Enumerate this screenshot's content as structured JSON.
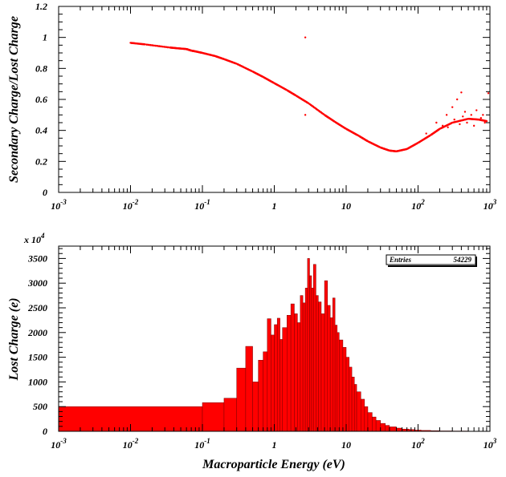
{
  "chart_data": [
    {
      "type": "scatter",
      "xscale": "log",
      "xlim": [
        0.001,
        1000
      ],
      "ylim": [
        0,
        1.2
      ],
      "ylabel": "Secondary Charge/Lost Charge",
      "xtick_labels": [
        "10^-3",
        "10^-2",
        "10^-1",
        "1",
        "10",
        "10^2",
        "10^3"
      ],
      "ytick_labels": [
        "0",
        "0.2",
        "0.4",
        "0.6",
        "0.8",
        "1",
        "1.2"
      ],
      "marker_color": "#ff0000",
      "points": [
        [
          0.01,
          0.965
        ],
        [
          0.016,
          0.955
        ],
        [
          0.035,
          0.935
        ],
        [
          0.045,
          0.93
        ],
        [
          0.06,
          0.925
        ],
        [
          0.07,
          0.915
        ],
        [
          0.08,
          0.91
        ],
        [
          0.1,
          0.9
        ],
        [
          0.15,
          0.88
        ],
        [
          0.2,
          0.86
        ],
        [
          0.3,
          0.83
        ],
        [
          0.5,
          0.78
        ],
        [
          0.7,
          0.745
        ],
        [
          1.0,
          0.705
        ],
        [
          1.5,
          0.66
        ],
        [
          2.0,
          0.625
        ],
        [
          3.0,
          0.575
        ],
        [
          5.0,
          0.5
        ],
        [
          7.0,
          0.455
        ],
        [
          10.0,
          0.41
        ],
        [
          15.0,
          0.365
        ],
        [
          20.0,
          0.33
        ],
        [
          30.0,
          0.29
        ],
        [
          40.0,
          0.27
        ],
        [
          50.0,
          0.265
        ],
        [
          70.0,
          0.28
        ],
        [
          100.0,
          0.32
        ],
        [
          150.0,
          0.37
        ],
        [
          200.0,
          0.41
        ],
        [
          300.0,
          0.45
        ],
        [
          500.0,
          0.475
        ],
        [
          700.0,
          0.47
        ],
        [
          900.0,
          0.46
        ],
        [
          2.7,
          1.0
        ],
        [
          2.7,
          0.5
        ],
        [
          250.0,
          0.5
        ],
        [
          300.0,
          0.55
        ],
        [
          350.0,
          0.6
        ],
        [
          400.0,
          0.645
        ],
        [
          450.0,
          0.52
        ],
        [
          550.0,
          0.5
        ],
        [
          650.0,
          0.53
        ],
        [
          750.0,
          0.48
        ],
        [
          850.0,
          0.45
        ],
        [
          950.0,
          0.64
        ],
        [
          180.0,
          0.45
        ],
        [
          220.0,
          0.43
        ],
        [
          260.0,
          0.42
        ],
        [
          320.0,
          0.47
        ],
        [
          380.0,
          0.44
        ],
        [
          420.0,
          0.49
        ],
        [
          480.0,
          0.45
        ],
        [
          600.0,
          0.43
        ],
        [
          800.0,
          0.5
        ],
        [
          130.0,
          0.38
        ]
      ]
    },
    {
      "type": "bar",
      "xscale": "log",
      "xlim": [
        0.001,
        1000
      ],
      "ylim": [
        0,
        3750
      ],
      "xlabel": "Macroparticle Energy (eV)",
      "ylabel": "Lost Charge (e)",
      "scale_note_base": "x 10",
      "scale_note_exp": "4",
      "stats_label": "Entries",
      "stats_value": "54229",
      "xtick_labels": [
        "10^-3",
        "10^-2",
        "10^-1",
        "1",
        "10",
        "10^2",
        "10^3"
      ],
      "ytick_labels": [
        "0",
        "500",
        "1000",
        "1500",
        "2000",
        "2500",
        "3000",
        "3500"
      ],
      "fill_color": "#ff0000",
      "bins": [
        [
          0.001,
          0.1,
          500
        ],
        [
          0.1,
          0.2,
          580
        ],
        [
          0.2,
          0.3,
          670
        ],
        [
          0.3,
          0.4,
          1280
        ],
        [
          0.4,
          0.5,
          1720
        ],
        [
          0.5,
          0.6,
          1000
        ],
        [
          0.6,
          0.7,
          1440
        ],
        [
          0.7,
          0.8,
          1610
        ],
        [
          0.8,
          0.9,
          2280
        ],
        [
          0.9,
          1.0,
          1950
        ],
        [
          1.0,
          1.1,
          2160
        ],
        [
          1.1,
          1.2,
          2290
        ],
        [
          1.2,
          1.3,
          1860
        ],
        [
          1.3,
          1.5,
          2100
        ],
        [
          1.5,
          1.7,
          2350
        ],
        [
          1.7,
          1.9,
          2580
        ],
        [
          1.9,
          2.1,
          2380
        ],
        [
          2.1,
          2.3,
          2200
        ],
        [
          2.3,
          2.5,
          2750
        ],
        [
          2.5,
          2.7,
          2600
        ],
        [
          2.7,
          2.9,
          2900
        ],
        [
          2.9,
          3.1,
          3500
        ],
        [
          3.1,
          3.3,
          3150
        ],
        [
          3.3,
          3.5,
          2900
        ],
        [
          3.5,
          3.8,
          3380
        ],
        [
          3.8,
          4.1,
          2750
        ],
        [
          4.1,
          4.5,
          2620
        ],
        [
          4.5,
          5.0,
          2380
        ],
        [
          5.0,
          5.5,
          3050
        ],
        [
          5.5,
          6.0,
          2550
        ],
        [
          6.0,
          6.5,
          2300
        ],
        [
          6.5,
          7.0,
          2700
        ],
        [
          7.0,
          7.5,
          2150
        ],
        [
          7.5,
          8.0,
          2000
        ],
        [
          8.0,
          9.0,
          1850
        ],
        [
          9.0,
          10.0,
          1700
        ],
        [
          10.0,
          11.0,
          1500
        ],
        [
          11.0,
          12.0,
          1300
        ],
        [
          12.0,
          13.0,
          1100
        ],
        [
          13.0,
          14.0,
          950
        ],
        [
          14.0,
          16.0,
          800
        ],
        [
          16.0,
          18.0,
          650
        ],
        [
          18.0,
          20.0,
          500
        ],
        [
          20.0,
          23.0,
          380
        ],
        [
          23.0,
          26.0,
          290
        ],
        [
          26.0,
          30.0,
          220
        ],
        [
          30.0,
          35.0,
          160
        ],
        [
          35.0,
          40.0,
          120
        ],
        [
          40.0,
          50.0,
          90
        ],
        [
          50.0,
          60.0,
          65
        ],
        [
          60.0,
          75.0,
          45
        ],
        [
          75.0,
          90.0,
          35
        ],
        [
          90.0,
          110.0,
          25
        ],
        [
          110.0,
          150.0,
          18
        ],
        [
          150.0,
          200.0,
          12
        ],
        [
          200.0,
          300.0,
          8
        ],
        [
          300.0,
          500.0,
          6
        ],
        [
          500.0,
          1000.0,
          4
        ]
      ]
    }
  ]
}
